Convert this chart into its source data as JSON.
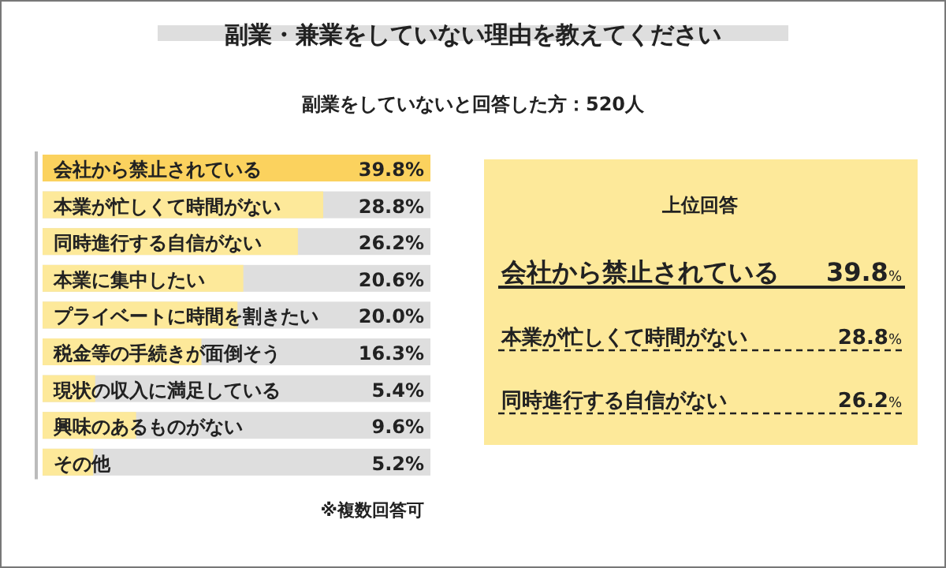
{
  "chart_data": [
    {
      "type": "bar",
      "orientation": "horizontal",
      "title": "副業・兼業をしていない理由を教えてください",
      "subtitle": "副業をしていないと回答した方：520人",
      "categories": [
        "会社から禁止されている",
        "本業が忙しくて時間がない",
        "同時進行する自信がない",
        "本業に集中したい",
        "プライベートに時間を割きたい",
        "税金等の手続きが面倒そう",
        "現状の収入に満足している",
        "興味のあるものがない",
        "その他"
      ],
      "values": [
        39.8,
        28.8,
        26.2,
        20.6,
        20.0,
        16.3,
        5.4,
        9.6,
        5.2
      ],
      "value_labels": [
        "39.8%",
        "28.8%",
        "26.2%",
        "20.6%",
        "20.0%",
        "16.3%",
        "5.4%",
        "9.6%",
        "5.2%"
      ],
      "colors": [
        "#fbd25e",
        "#fde99a",
        "#fde99a",
        "#fde99a",
        "#fde99a",
        "#fde99a",
        "#fde99a",
        "#fde99a",
        "#fde99a"
      ],
      "annotations": [
        "※複数回答可"
      ]
    },
    {
      "type": "other",
      "title": "上位回答",
      "categories": [
        "会社から禁止されている",
        "本業が忙しくて時間がない",
        "同時進行する自信がない"
      ],
      "values": [
        39.8,
        28.8,
        26.2
      ],
      "value_labels": [
        "39.8%",
        "28.8%",
        "26.2%"
      ]
    }
  ]
}
